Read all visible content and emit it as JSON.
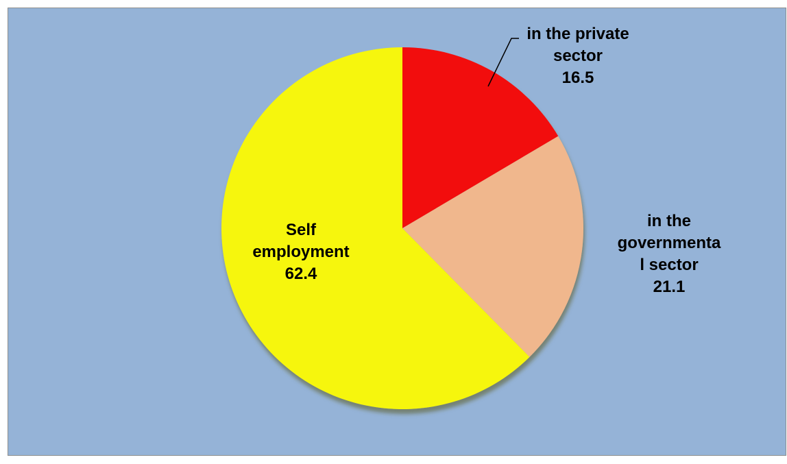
{
  "chart_data": {
    "type": "pie",
    "categories": [
      "in the private sector",
      "in the governmental sector",
      "Self employment"
    ],
    "values": [
      16.5,
      21.1,
      62.4
    ],
    "colors": [
      "#f20a0a",
      "#f0b78d",
      "#f6f609"
    ],
    "background": "#95b3d7",
    "start": "12 o'clock, clockwise",
    "labels": [
      {
        "lines": [
          "in the private",
          "sector",
          "16.5"
        ]
      },
      {
        "lines": [
          "in the",
          "governmenta",
          "l sector",
          "21.1"
        ]
      },
      {
        "lines": [
          "Self",
          "employment",
          "62.4"
        ]
      }
    ]
  }
}
